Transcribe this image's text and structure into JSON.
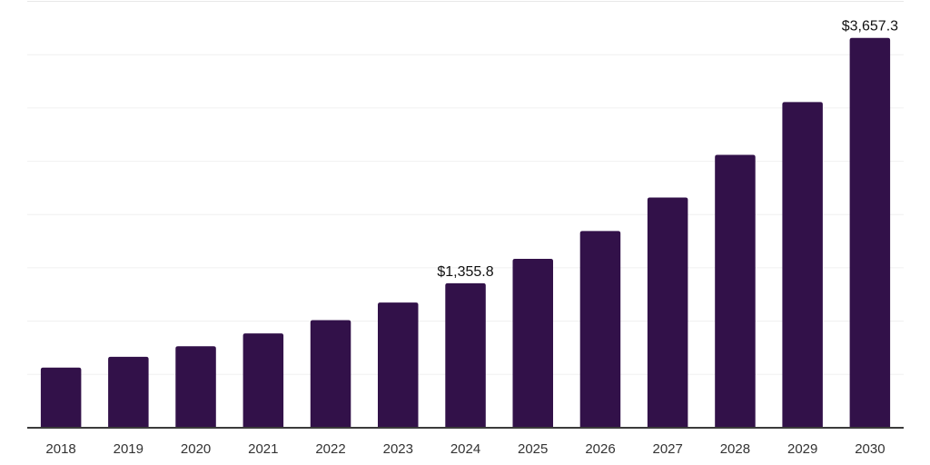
{
  "chart_data": {
    "type": "bar",
    "title": "",
    "xlabel": "",
    "ylabel": "",
    "categories": [
      "2018",
      "2019",
      "2020",
      "2021",
      "2022",
      "2023",
      "2024",
      "2025",
      "2026",
      "2027",
      "2028",
      "2029",
      "2030"
    ],
    "values": [
      565,
      665,
      765,
      885,
      1010,
      1175,
      1355.8,
      1585,
      1845,
      2160,
      2560,
      3055,
      3657.3
    ],
    "data_labels": [
      {
        "category": "2024",
        "text": "$1,355.8"
      },
      {
        "category": "2030",
        "text": "$3,657.3"
      }
    ],
    "ylim": [
      0,
      4000
    ],
    "gridline_interval": 500,
    "grid": "horizontal",
    "legend": "none",
    "colors": {
      "bar": "#321149",
      "gridline": "#f0f0f0",
      "top_gridline": "#e8e8e8",
      "axis_line": "#3b3b3b",
      "tick_label": "#333333",
      "data_label": "#111111",
      "background": "#ffffff"
    }
  }
}
